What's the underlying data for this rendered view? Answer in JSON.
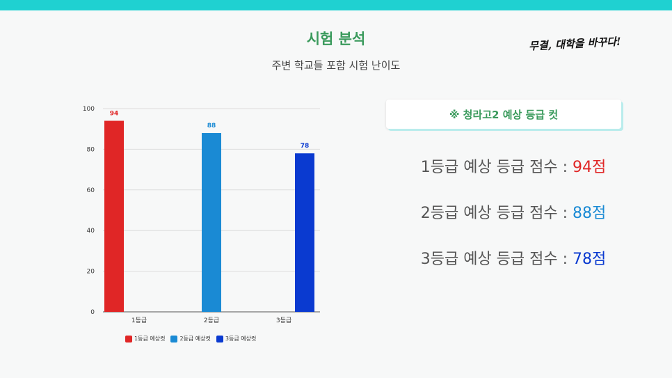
{
  "header": {
    "title": "시험 분석",
    "subtitle": "주변 학교들 포함 시험 난이도",
    "slogan": "무결, 대학을 바꾸다!"
  },
  "colors": {
    "accent_top": "#1fd1d1",
    "title": "#3a9a5c",
    "grade1": "#e02626",
    "grade2": "#1a8ad4",
    "grade3": "#0a3ad0"
  },
  "chart_data": {
    "type": "bar",
    "categories": [
      "1등급",
      "2등급",
      "3등급"
    ],
    "series": [
      {
        "name": "1등급 예상컷",
        "color": "#e02626",
        "values": [
          94,
          null,
          null
        ]
      },
      {
        "name": "2등급 예상컷",
        "color": "#1a8ad4",
        "values": [
          null,
          88,
          null
        ]
      },
      {
        "name": "3등급 예상컷",
        "color": "#0a3ad0",
        "values": [
          null,
          null,
          78
        ]
      }
    ],
    "ylim": [
      0,
      100
    ],
    "yticks": [
      0,
      20,
      40,
      60,
      80,
      100
    ],
    "grid": true,
    "legend": "bottom"
  },
  "info": {
    "box_label": "※ 청라고2 예상 등급 컷",
    "scores": [
      {
        "label": "1등급 예상 등급 점수 : ",
        "value": "94점",
        "color": "#e02626"
      },
      {
        "label": "2등급 예상 등급 점수 : ",
        "value": "88점",
        "color": "#1a8ad4"
      },
      {
        "label": "3등급 예상 등급 점수 : ",
        "value": "78점",
        "color": "#0a3ad0"
      }
    ]
  }
}
